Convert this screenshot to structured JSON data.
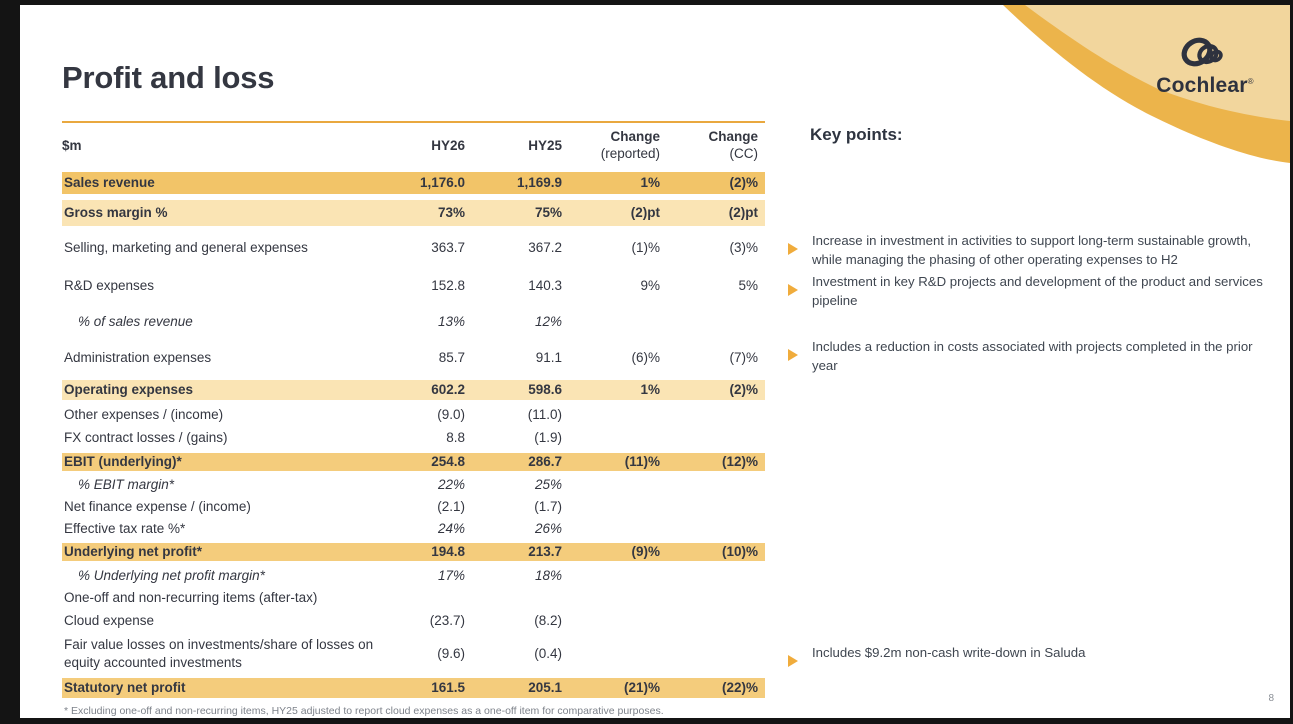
{
  "slide": {
    "title": "Profit and loss",
    "page_number": "8",
    "footnote": "* Excluding one-off and non-recurring items, HY25 adjusted to report cloud expenses as a one-off item for comparative purposes.",
    "logo": {
      "brand": "Cochlear",
      "registered": "®"
    }
  },
  "table": {
    "headers": [
      {
        "line1": "$m",
        "line2": ""
      },
      {
        "line1": "HY26",
        "line2": ""
      },
      {
        "line1": "HY25",
        "line2": ""
      },
      {
        "line1": "Change",
        "line2": "(reported)"
      },
      {
        "line1": "Change",
        "line2": "(CC)"
      }
    ],
    "rows": [
      {
        "label": "Sales revenue",
        "hy26": "1,176.0",
        "hy25": "1,169.9",
        "change_reported": "1%",
        "change_cc": "(2)%",
        "highlight": "dark",
        "italic_label": false,
        "italic_values": false
      },
      {
        "label": "Gross margin %",
        "hy26": "73%",
        "hy25": "75%",
        "change_reported": "(2)pt",
        "change_cc": "(2)pt",
        "highlight": "light",
        "italic_label": false,
        "italic_values": false
      },
      {
        "label": "Selling, marketing and general expenses",
        "hy26": "363.7",
        "hy25": "367.2",
        "change_reported": "(1)%",
        "change_cc": "(3)%",
        "highlight": null,
        "italic_label": false,
        "italic_values": false
      },
      {
        "label": "R&D expenses",
        "hy26": "152.8",
        "hy25": "140.3",
        "change_reported": "9%",
        "change_cc": "5%",
        "highlight": null,
        "italic_label": false,
        "italic_values": false
      },
      {
        "label": "% of sales revenue",
        "hy26": "13%",
        "hy25": "12%",
        "change_reported": "",
        "change_cc": "",
        "highlight": null,
        "italic_label": true,
        "italic_values": true
      },
      {
        "label": "Administration expenses",
        "hy26": "85.7",
        "hy25": "91.1",
        "change_reported": "(6)%",
        "change_cc": "(7)%",
        "highlight": null,
        "italic_label": false,
        "italic_values": false
      },
      {
        "label": "Operating expenses",
        "hy26": "602.2",
        "hy25": "598.6",
        "change_reported": "1%",
        "change_cc": "(2)%",
        "highlight": "light",
        "italic_label": false,
        "italic_values": false
      },
      {
        "label": "Other expenses / (income)",
        "hy26": "(9.0)",
        "hy25": "(11.0)",
        "change_reported": "",
        "change_cc": "",
        "highlight": null,
        "italic_label": false,
        "italic_values": false
      },
      {
        "label": "FX contract losses / (gains)",
        "hy26": "8.8",
        "hy25": "(1.9)",
        "change_reported": "",
        "change_cc": "",
        "highlight": null,
        "italic_label": false,
        "italic_values": false
      },
      {
        "label": "EBIT (underlying)*",
        "hy26": "254.8",
        "hy25": "286.7",
        "change_reported": "(11)%",
        "change_cc": "(12)%",
        "highlight": "medium",
        "italic_label": false,
        "italic_values": false
      },
      {
        "label": "% EBIT margin*",
        "hy26": "22%",
        "hy25": "25%",
        "change_reported": "",
        "change_cc": "",
        "highlight": null,
        "italic_label": true,
        "italic_values": true
      },
      {
        "label": "Net finance expense / (income)",
        "hy26": "(2.1)",
        "hy25": "(1.7)",
        "change_reported": "",
        "change_cc": "",
        "highlight": null,
        "italic_label": false,
        "italic_values": false
      },
      {
        "label": "Effective tax rate %*",
        "hy26": "24%",
        "hy25": "26%",
        "change_reported": "",
        "change_cc": "",
        "highlight": null,
        "italic_label": false,
        "italic_values": true
      },
      {
        "label": "Underlying net profit*",
        "hy26": "194.8",
        "hy25": "213.7",
        "change_reported": "(9)%",
        "change_cc": "(10)%",
        "highlight": "medium",
        "italic_label": false,
        "italic_values": false
      },
      {
        "label": "% Underlying net profit margin*",
        "hy26": "17%",
        "hy25": "18%",
        "change_reported": "",
        "change_cc": "",
        "highlight": null,
        "italic_label": true,
        "italic_values": true
      },
      {
        "label": "One-off and non-recurring items (after-tax)",
        "hy26": "",
        "hy25": "",
        "change_reported": "",
        "change_cc": "",
        "highlight": null,
        "italic_label": false,
        "italic_values": false
      },
      {
        "label": "Cloud expense",
        "hy26": "(23.7)",
        "hy25": "(8.2)",
        "change_reported": "",
        "change_cc": "",
        "highlight": null,
        "italic_label": false,
        "italic_values": false
      },
      {
        "label": "Fair value losses on investments/share of losses on equity accounted investments",
        "hy26": "(9.6)",
        "hy25": "(0.4)",
        "change_reported": "",
        "change_cc": "",
        "highlight": null,
        "italic_label": false,
        "italic_values": false
      },
      {
        "label": "Statutory net profit",
        "hy26": "161.5",
        "hy25": "205.1",
        "change_reported": "(21)%",
        "change_cc": "(22)%",
        "highlight": "medium",
        "italic_label": false,
        "italic_values": false
      }
    ]
  },
  "key_points": {
    "heading": "Key points:",
    "bullets": [
      {
        "icon": "triangle-bullet-icon",
        "text": "Increase in investment in activities to support long-term sustainable growth, while managing the phasing of other operating expenses to H2"
      },
      {
        "icon": "triangle-bullet-icon",
        "text": "Investment in key R&D projects and development of the product and services pipeline"
      },
      {
        "icon": "triangle-bullet-icon",
        "text": "Includes a reduction in costs associated with projects completed in the prior year"
      },
      {
        "icon": "triangle-bullet-icon",
        "text": "Includes $9.2m non-cash write-down in Saluda"
      }
    ]
  },
  "colors": {
    "row_highlight_dark": "#F2C468",
    "row_highlight_light": "#FAE4B4",
    "row_highlight_medium": "#F4CC7C",
    "table_top_rule": "#E9A83F",
    "corner_wave_outer": "#ECB44B",
    "corner_wave_inner": "#F2D69D",
    "bullet_gold": "#F0AC3C",
    "text_ink": "#343741"
  }
}
